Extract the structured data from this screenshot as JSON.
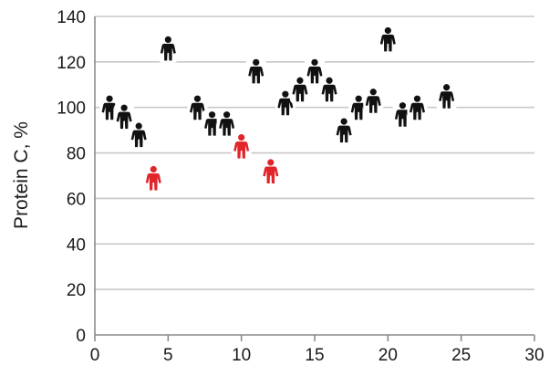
{
  "chart_data": {
    "type": "scatter",
    "title": "",
    "xlabel": "",
    "ylabel": "Protein C, %",
    "xlim": [
      0,
      30
    ],
    "ylim": [
      0,
      140
    ],
    "x_ticks": [
      0,
      5,
      10,
      15,
      20,
      25,
      30
    ],
    "y_ticks": [
      0,
      20,
      40,
      60,
      80,
      100,
      120,
      140
    ],
    "grid": "horizontal",
    "legend": "none",
    "marker": "person-icon",
    "colors": {
      "normal": "#111111",
      "low": "#e0252b"
    },
    "series": [
      {
        "color": "#111111",
        "x": [
          1,
          2,
          3,
          5,
          7,
          8,
          9,
          11,
          13,
          14,
          15,
          16,
          17,
          18,
          19,
          20,
          21,
          22,
          24
        ],
        "y": [
          100,
          96,
          88,
          126,
          100,
          93,
          93,
          116,
          102,
          108,
          116,
          108,
          90,
          100,
          103,
          130,
          97,
          100,
          105
        ]
      },
      {
        "color": "#e0252b",
        "x": [
          4,
          10,
          12
        ],
        "y": [
          69,
          83,
          72
        ]
      }
    ]
  }
}
